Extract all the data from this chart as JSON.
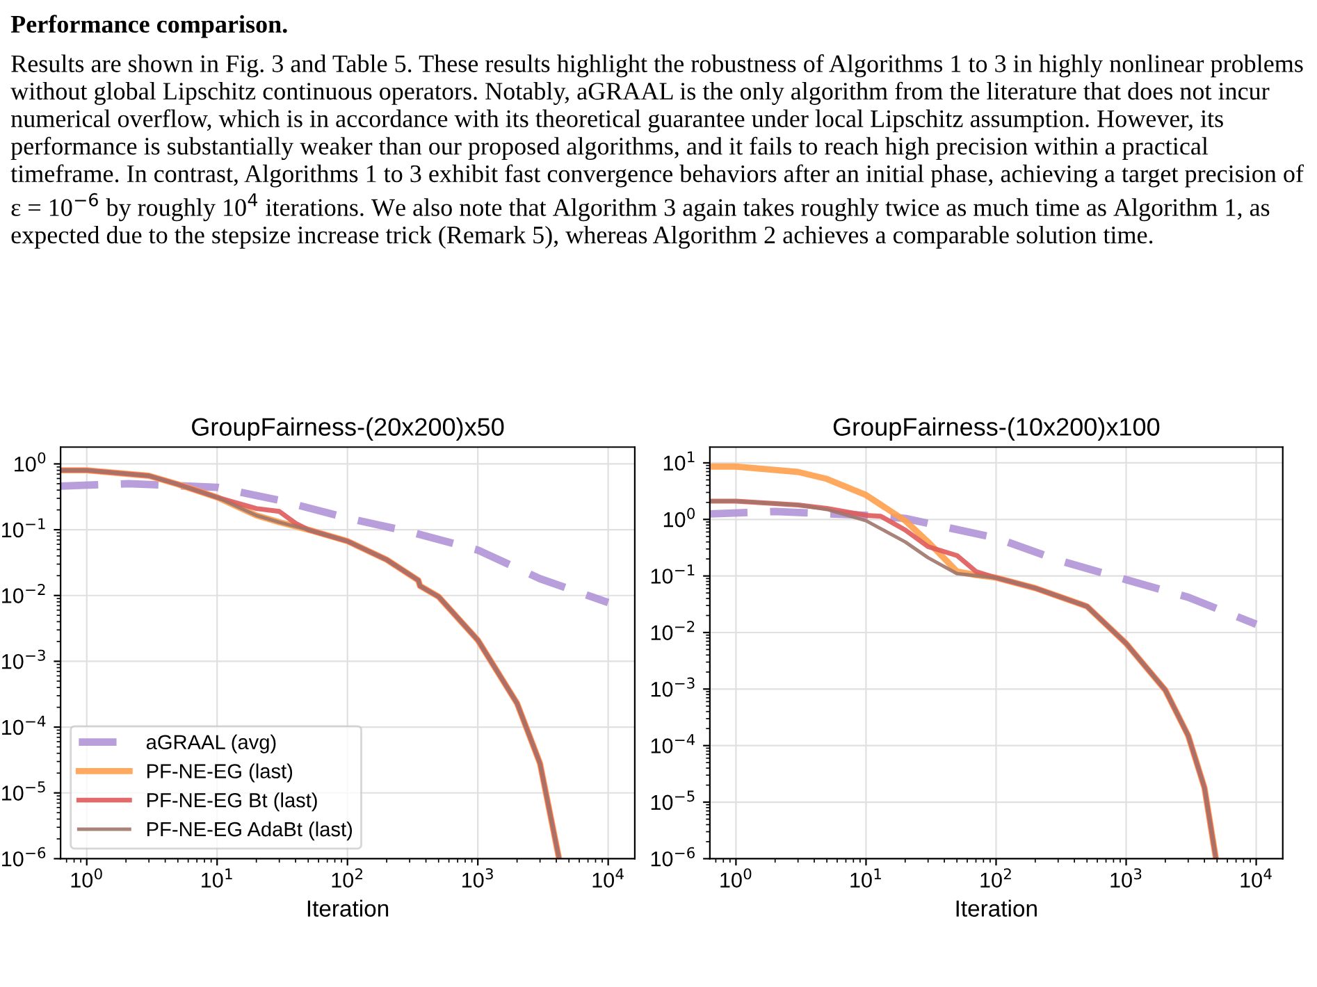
{
  "chart_data": [
    {
      "type": "other",
      "title": "Performance comparison.",
      "annotations": [
        "Results are shown in Fig. 3 and Table 5. These results highlight the robustness of Algorithms 1 to 3 in highly nonlinear problems without global Lipschitz continuous operators. Notably, aGRAAL is the only algorithm from the literature that does not incur numerical overflow, which is in accordance with its theoretical guarantee under local Lipschitz assumption. However, its performance is substantially weaker than our proposed algorithms, and it fails to reach high precision within a practical timeframe. In contrast, Algorithms 1 to 3 exhibit fast convergence behaviors after an initial phase, achieving a target precision of ε = 10$^{−6}$ by roughly 10$^{4}$ iterations. We also note that Algorithm 3 again takes roughly twice as much time as Algorithm 1, as expected due to the stepsize increase trick (Remark 5), whereas Algorithm 2 achieves a comparable solution time."
      ]
    },
    {
      "type": "line",
      "title": "GroupFairness-(20x200)x50",
      "xlabel": "Iteration",
      "log": "xy",
      "grid": true,
      "legend": "bottom left",
      "xlim": [
        0.63,
        16000
      ],
      "ylim": [
        1e-06,
        1.8
      ],
      "xticks": [
        {
          "value": 1,
          "label": "10$^{0}$"
        },
        {
          "value": 10,
          "label": "10$^{1}$"
        },
        {
          "value": 100,
          "label": "10$^{2}$"
        },
        {
          "value": 1000,
          "label": "10$^{3}$"
        },
        {
          "value": 10000,
          "label": "10$^{4}$"
        }
      ],
      "yticks": [
        {
          "value": 1,
          "label": "10$^{0}$"
        },
        {
          "value": 0.1,
          "label": "10$^{−1}$"
        },
        {
          "value": 0.01,
          "label": "10$^{−2}$"
        },
        {
          "value": 0.001,
          "label": "10$^{−3}$"
        },
        {
          "value": 0.0001,
          "label": "10$^{−4}$"
        },
        {
          "value": 1e-05,
          "label": "10$^{−5}$"
        },
        {
          "value": 1e-06,
          "label": "10$^{−6}$"
        }
      ],
      "series": [
        {
          "name": "aGRAAL (avg)",
          "color": "#b093d6",
          "line_style": "dashed",
          "x": [
            0.63,
            2.1,
            10,
            30,
            100,
            300,
            1000,
            3000,
            10000
          ],
          "values": [
            0.46,
            0.5,
            0.44,
            0.28,
            0.15,
            0.093,
            0.049,
            0.018,
            0.0078
          ]
        },
        {
          "name": "PF-NE-EG (last)",
          "color": "#ffa04d",
          "line_style": "solid",
          "x": [
            0.63,
            1,
            3,
            5,
            10,
            20,
            30,
            50,
            100,
            200,
            350,
            360,
            500,
            1000,
            2000,
            3000,
            4200
          ],
          "values": [
            0.8,
            0.8,
            0.66,
            0.49,
            0.31,
            0.165,
            0.13,
            0.1,
            0.067,
            0.035,
            0.017,
            0.014,
            0.0096,
            0.0021,
            0.00023,
            2.8e-05,
            1e-06
          ]
        },
        {
          "name": "PF-NE-EG Bt (last)",
          "color": "#e05a5a",
          "line_style": "solid",
          "x": [
            0.63,
            1,
            3,
            5,
            10,
            20,
            30,
            40,
            50,
            100,
            200,
            350,
            360,
            500,
            1000,
            2000,
            3000,
            4200
          ],
          "values": [
            0.8,
            0.8,
            0.66,
            0.49,
            0.31,
            0.21,
            0.19,
            0.125,
            0.1,
            0.067,
            0.035,
            0.017,
            0.014,
            0.0096,
            0.0021,
            0.00023,
            2.8e-05,
            1e-06
          ]
        },
        {
          "name": "PF-NE-EG AdaBt (last)",
          "color": "#a0766a",
          "line_style": "solid",
          "x": [
            0.63,
            1,
            3,
            5,
            10,
            20,
            30,
            50,
            100,
            200,
            350,
            360,
            500,
            1000,
            2000,
            3000,
            4200
          ],
          "values": [
            0.8,
            0.8,
            0.66,
            0.49,
            0.31,
            0.165,
            0.13,
            0.1,
            0.067,
            0.035,
            0.017,
            0.014,
            0.0096,
            0.0021,
            0.00023,
            2.8e-05,
            1e-06
          ]
        }
      ]
    },
    {
      "type": "line",
      "title": "GroupFairness-(10x200)x100",
      "xlabel": "Iteration",
      "log": "xy",
      "grid": true,
      "xlim": [
        0.63,
        16000
      ],
      "ylim": [
        1e-06,
        19
      ],
      "xticks": [
        {
          "value": 1,
          "label": "10$^{0}$"
        },
        {
          "value": 10,
          "label": "10$^{1}$"
        },
        {
          "value": 100,
          "label": "10$^{2}$"
        },
        {
          "value": 1000,
          "label": "10$^{3}$"
        },
        {
          "value": 10000,
          "label": "10$^{4}$"
        }
      ],
      "yticks": [
        {
          "value": 10,
          "label": "10$^{1}$"
        },
        {
          "value": 1,
          "label": "10$^{0}$"
        },
        {
          "value": 0.1,
          "label": "10$^{−1}$"
        },
        {
          "value": 0.01,
          "label": "10$^{−2}$"
        },
        {
          "value": 0.001,
          "label": "10$^{−3}$"
        },
        {
          "value": 0.0001,
          "label": "10$^{−4}$"
        },
        {
          "value": 1e-05,
          "label": "10$^{−5}$"
        },
        {
          "value": 1e-06,
          "label": "10$^{−6}$"
        }
      ],
      "series": [
        {
          "color": "#b093d6",
          "line_style": "dashed",
          "x": [
            0.63,
            2,
            10,
            20,
            100,
            300,
            1000,
            3000,
            10000
          ],
          "values": [
            1.25,
            1.38,
            1.18,
            1.04,
            0.47,
            0.19,
            0.086,
            0.042,
            0.014
          ]
        },
        {
          "color": "#ffa04d",
          "line_style": "solid",
          "x": [
            0.63,
            1,
            3,
            5,
            10,
            20,
            30,
            50,
            70,
            100,
            200,
            500,
            1000,
            2000,
            3000,
            4000,
            4900
          ],
          "values": [
            8.6,
            8.6,
            6.9,
            5.2,
            2.7,
            0.95,
            0.4,
            0.12,
            0.104,
            0.093,
            0.061,
            0.029,
            0.0064,
            0.00096,
            0.00015,
            1.8e-05,
            1e-06
          ]
        },
        {
          "color": "#e05a5a",
          "line_style": "solid",
          "x": [
            0.63,
            1,
            3,
            5,
            10,
            13,
            20,
            30,
            50,
            70,
            100,
            200,
            500,
            1000,
            2000,
            3000,
            4000,
            4900
          ],
          "values": [
            2.1,
            2.1,
            1.8,
            1.57,
            1.18,
            1.14,
            0.65,
            0.33,
            0.23,
            0.12,
            0.093,
            0.061,
            0.029,
            0.0064,
            0.00096,
            0.00015,
            1.8e-05,
            1e-06
          ]
        },
        {
          "color": "#a0766a",
          "line_style": "solid",
          "x": [
            0.63,
            1,
            3,
            5,
            10,
            20,
            30,
            50,
            100,
            200,
            500,
            1000,
            2000,
            3000,
            4000,
            4900
          ],
          "values": [
            2.1,
            2.1,
            1.8,
            1.5,
            0.95,
            0.4,
            0.21,
            0.11,
            0.093,
            0.061,
            0.029,
            0.0064,
            0.00096,
            0.00015,
            1.8e-05,
            1e-06
          ]
        }
      ]
    }
  ]
}
